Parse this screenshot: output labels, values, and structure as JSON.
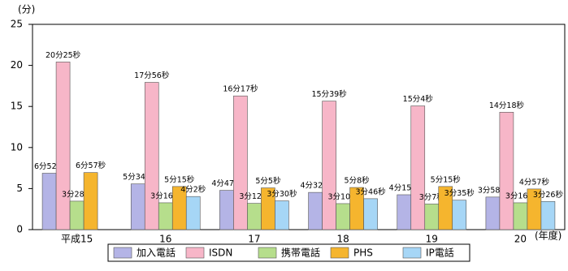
{
  "chart_data": {
    "type": "bar",
    "y_label": "(分)",
    "x_label": "(年度)",
    "categories": [
      "平成15",
      "16",
      "17",
      "18",
      "19",
      "20"
    ],
    "ylim": [
      0,
      25
    ],
    "yticks": [
      0,
      5,
      10,
      15,
      20,
      25
    ],
    "series": [
      {
        "name": "加入電話",
        "color": "#b4b4e6",
        "values": [
          6.867,
          5.567,
          4.783,
          4.533,
          4.25,
          3.967
        ],
        "value_labels": [
          "6分52秒",
          "5分34秒",
          "4分47秒",
          "4分32秒",
          "4分15秒",
          "3分58秒"
        ]
      },
      {
        "name": "ISDN",
        "color": "#f7b6c8",
        "values": [
          20.417,
          17.933,
          16.283,
          15.65,
          15.067,
          14.3
        ],
        "value_labels": [
          "20分25秒",
          "17分56秒",
          "16分17秒",
          "15分39秒",
          "15分4秒",
          "14分18秒"
        ]
      },
      {
        "name": "携帯電話",
        "color": "#b6de8c",
        "values": [
          3.467,
          3.267,
          3.2,
          3.167,
          3.117,
          3.267
        ],
        "value_labels": [
          "3分28秒",
          "3分16秒",
          "3分12秒",
          "3分10秒",
          "3分7秒",
          "3分16秒"
        ]
      },
      {
        "name": "PHS",
        "color": "#f5b52e",
        "values": [
          6.95,
          5.25,
          5.083,
          5.133,
          5.25,
          4.95
        ],
        "value_labels": [
          "6分57秒",
          "5分15秒",
          "5分5秒",
          "5分8秒",
          "5分15秒",
          "4分57秒"
        ]
      },
      {
        "name": "IP電話",
        "color": "#a6d6f6",
        "values": [
          null,
          4.033,
          3.5,
          3.767,
          3.583,
          3.433
        ],
        "value_labels": [
          null,
          "4分2秒",
          "3分30秒",
          "3分46秒",
          "3分35秒",
          "3分26秒"
        ]
      }
    ]
  }
}
